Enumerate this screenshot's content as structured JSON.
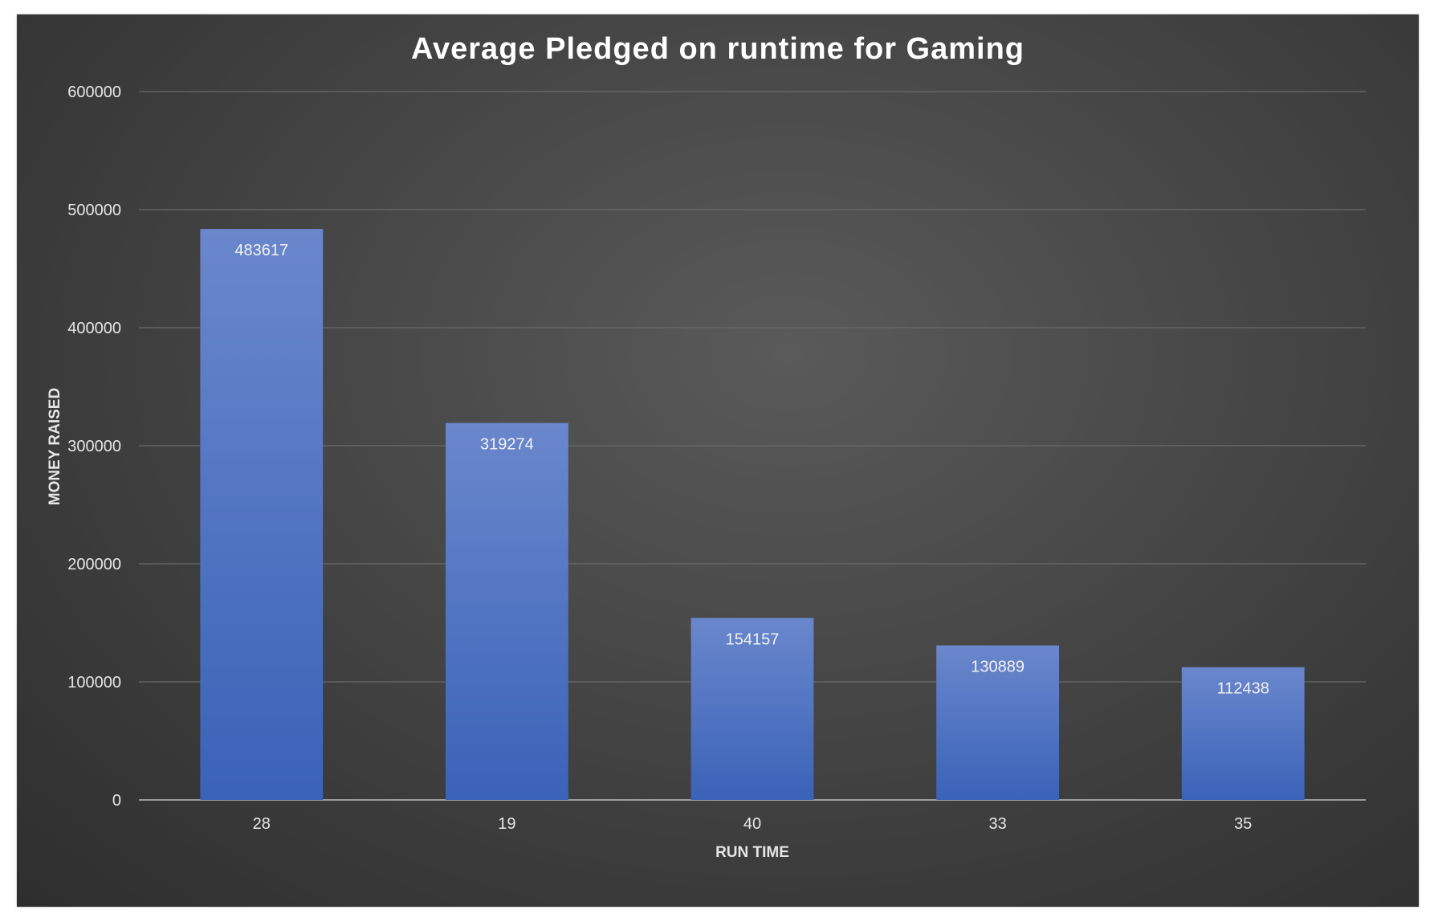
{
  "chart_data": {
    "type": "bar",
    "title": "Average Pledged on runtime for Gaming",
    "xlabel": "RUN TIME",
    "ylabel": "MONEY RAISED",
    "categories": [
      "28",
      "19",
      "40",
      "33",
      "35"
    ],
    "values": [
      483617,
      319274,
      154157,
      130889,
      112438
    ],
    "data_labels": [
      "483617",
      "319274",
      "154157",
      "130889",
      "112438"
    ],
    "ylim": [
      0,
      600000
    ],
    "yticks": [
      "0",
      "100000",
      "200000",
      "300000",
      "400000",
      "500000",
      "600000"
    ],
    "grid": true,
    "legend": "none",
    "colors": {
      "bar_top": "#6a87cc",
      "bar_bottom": "#3a62b8",
      "background": "#444444"
    }
  }
}
